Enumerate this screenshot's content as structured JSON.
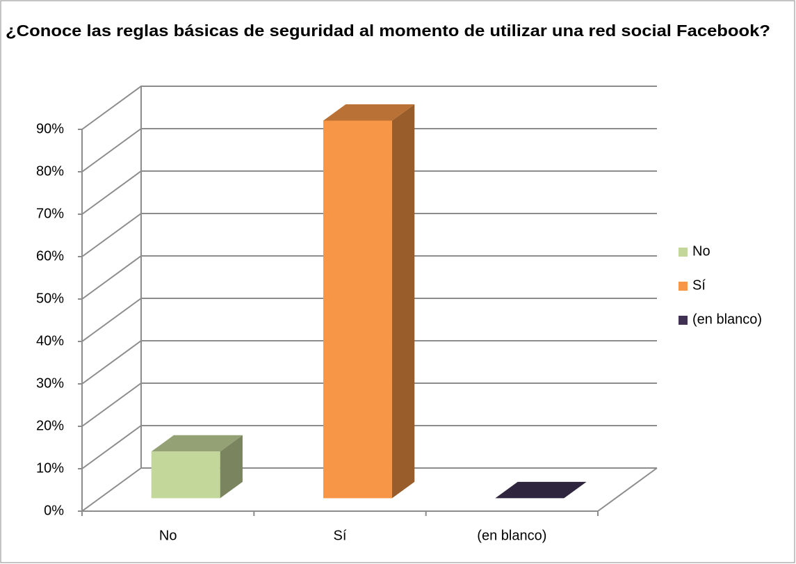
{
  "chart_data": {
    "type": "bar3d",
    "title": "¿Conoce las reglas básicas de seguridad al momento de utilizar una red social Facebook?",
    "categories": [
      "No",
      "Sí",
      "(en blanco)"
    ],
    "values": [
      11,
      89,
      0
    ],
    "colors": [
      "#c4d79b",
      "#f79646",
      "#403152"
    ],
    "ylim": [
      0,
      90
    ],
    "yticks": [
      {
        "value": 0,
        "label": "0%"
      },
      {
        "value": 10,
        "label": "10%"
      },
      {
        "value": 20,
        "label": "20%"
      },
      {
        "value": 30,
        "label": "30%"
      },
      {
        "value": 40,
        "label": "40%"
      },
      {
        "value": 50,
        "label": "50%"
      },
      {
        "value": 60,
        "label": "60%"
      },
      {
        "value": 70,
        "label": "70%"
      },
      {
        "value": 80,
        "label": "80%"
      },
      {
        "value": 90,
        "label": "90%"
      }
    ],
    "grid": true,
    "legend": "right"
  }
}
